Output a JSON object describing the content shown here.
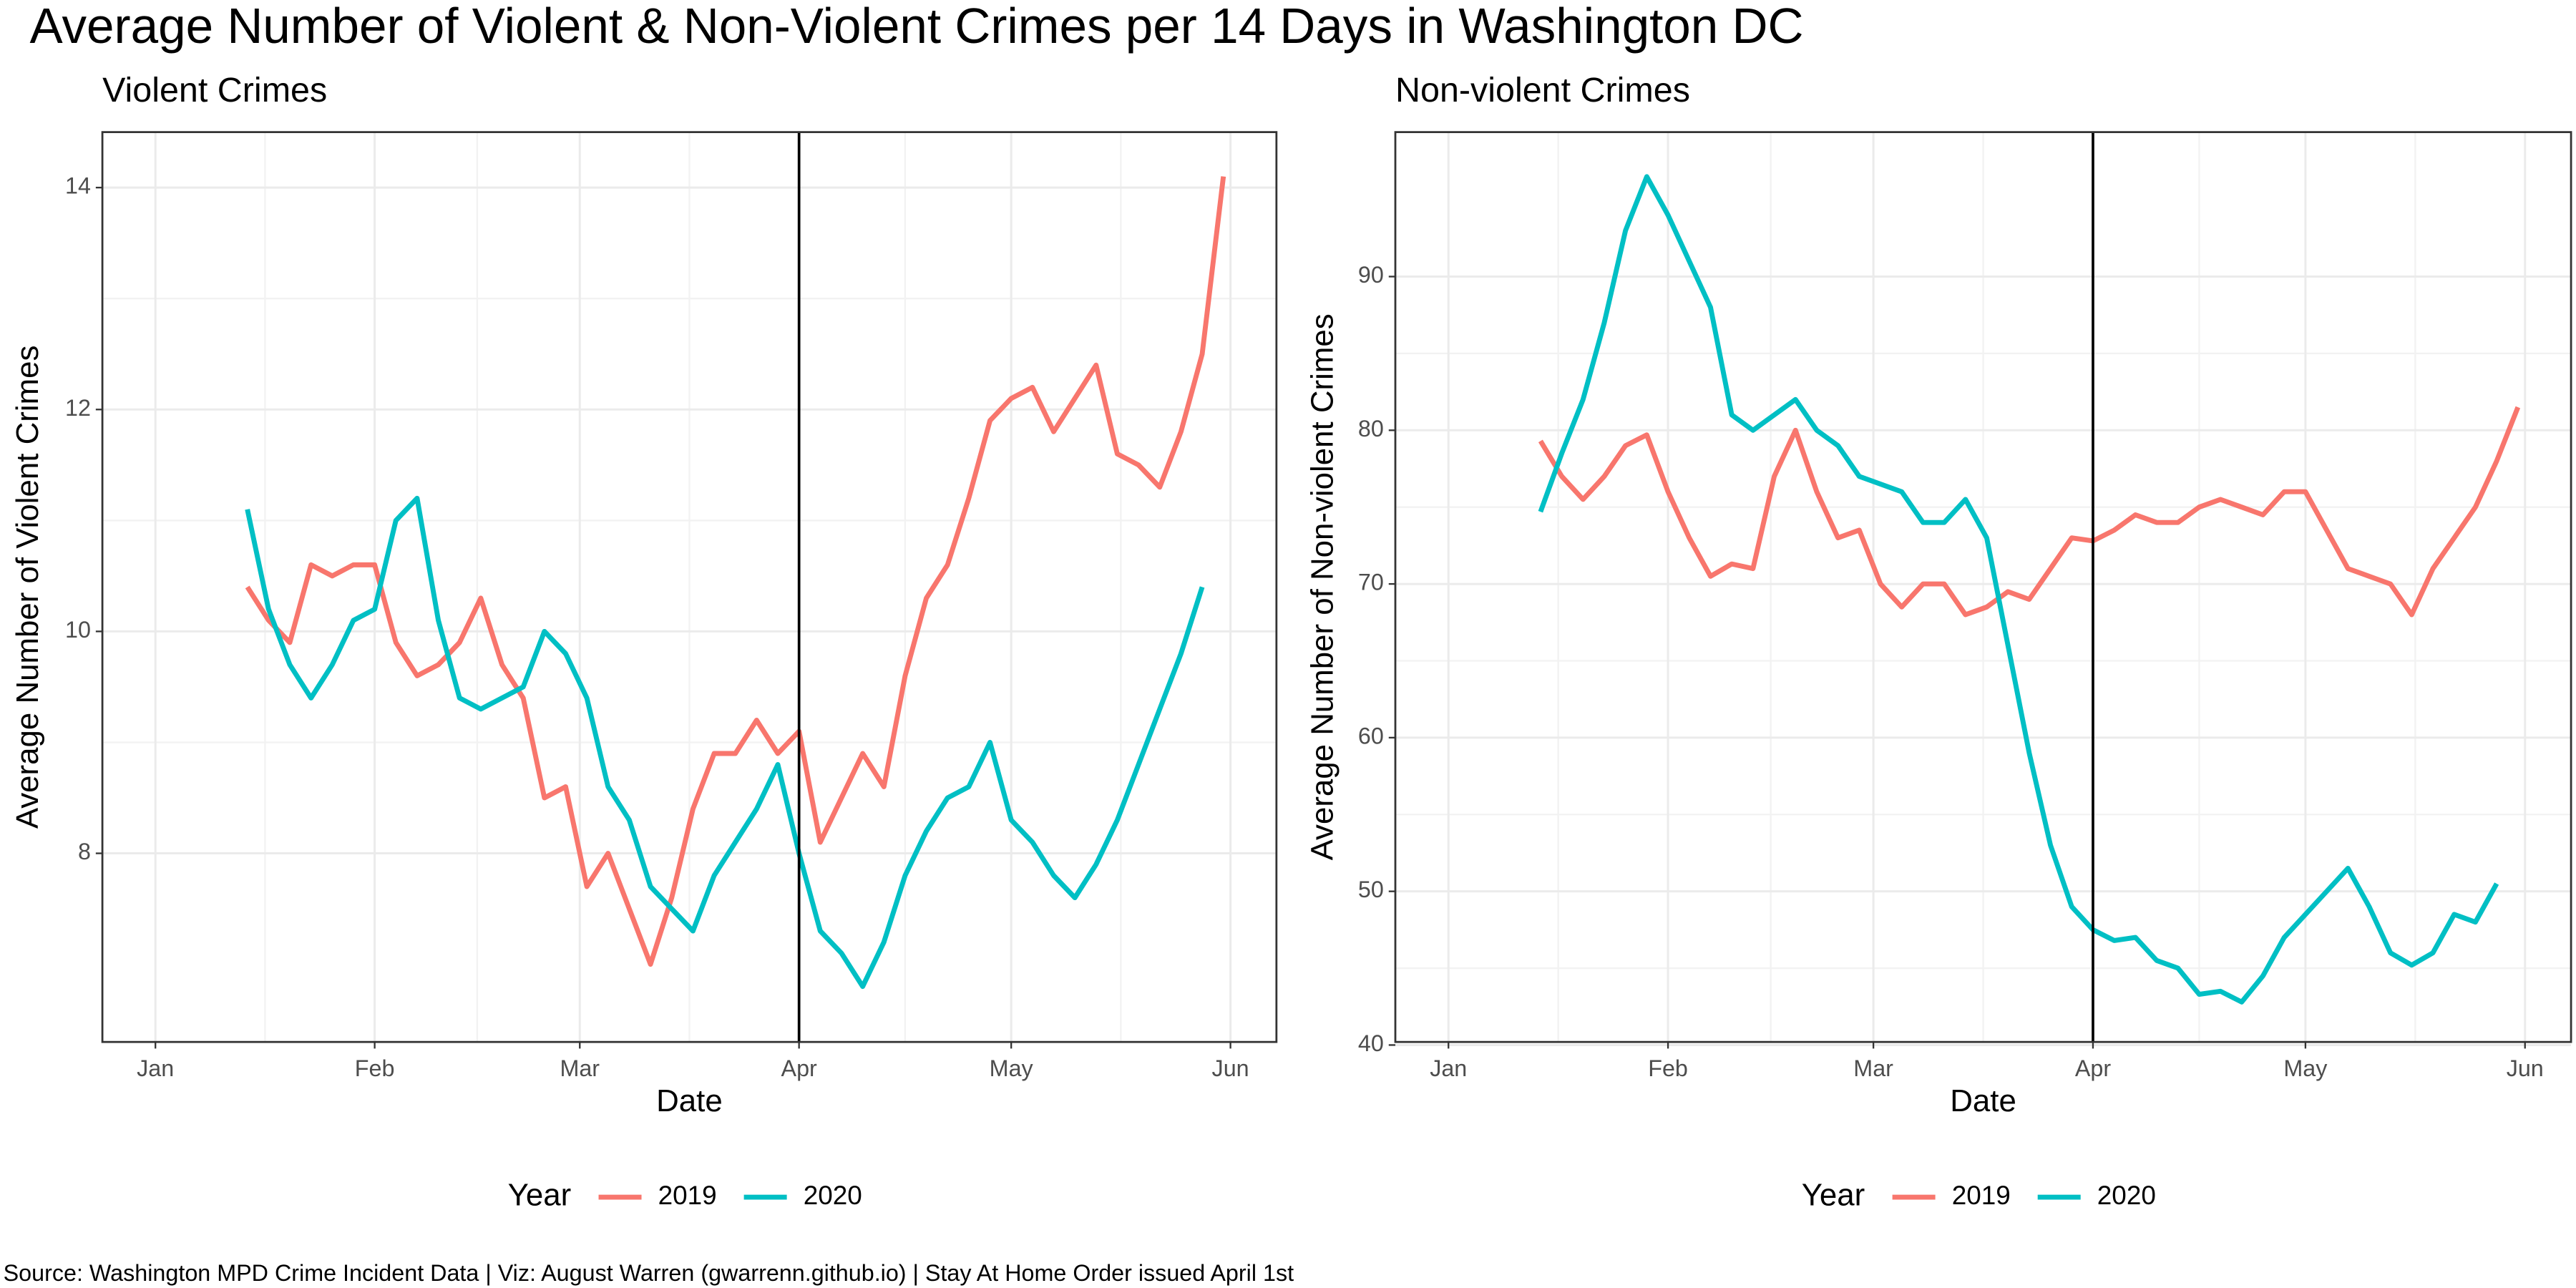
{
  "title": "Average Number of Violent & Non-Violent Crimes per 14 Days in Washington DC",
  "caption": "Source: Washington MPD Crime Incident Data | Viz: August Warren (gwarrenn.github.io) | Stay At Home Order issued April 1st",
  "chart_data": [
    {
      "type": "line",
      "title": "Violent Crimes",
      "xlabel": "Date",
      "ylabel": "Average Number of Violent Crimes",
      "x": [
        14,
        17,
        20,
        23,
        26,
        29,
        32,
        35,
        38,
        41,
        44,
        47,
        50,
        53,
        56,
        59,
        62,
        65,
        68,
        71,
        74,
        77,
        80,
        83,
        86,
        89,
        92,
        95,
        98,
        101,
        104,
        107,
        110,
        113,
        116,
        119,
        122,
        125,
        128,
        131,
        134,
        137,
        140,
        143,
        146,
        149,
        152
      ],
      "series": [
        {
          "name": "2019",
          "color": "#F8766D",
          "values": [
            10.4,
            10.1,
            9.9,
            10.6,
            10.5,
            10.6,
            10.6,
            9.9,
            9.6,
            9.7,
            9.9,
            10.3,
            9.7,
            9.4,
            8.5,
            8.6,
            7.7,
            8.0,
            7.5,
            7.0,
            7.6,
            8.4,
            8.9,
            8.9,
            9.2,
            8.9,
            9.1,
            8.1,
            8.5,
            8.9,
            8.6,
            9.6,
            10.3,
            10.6,
            11.2,
            11.9,
            12.1,
            12.2,
            11.8,
            12.1,
            12.4,
            11.6,
            11.5,
            11.3,
            11.8,
            12.5,
            14.1
          ]
        },
        {
          "name": "2020",
          "color": "#00BFC4",
          "values": [
            11.1,
            10.2,
            9.7,
            9.4,
            9.7,
            10.1,
            10.2,
            11.0,
            11.2,
            10.1,
            9.4,
            9.3,
            9.4,
            9.5,
            10.0,
            9.8,
            9.4,
            8.6,
            8.3,
            7.7,
            7.5,
            7.3,
            7.8,
            8.1,
            8.4,
            8.8,
            8.0,
            7.3,
            7.1,
            6.8,
            7.2,
            7.8,
            8.2,
            8.5,
            8.6,
            9.0,
            8.3,
            8.1,
            7.8,
            7.6,
            7.9,
            8.3,
            8.8,
            9.3,
            9.8,
            10.4,
            null
          ]
        }
      ],
      "xlim": [
        -6.5,
        159.5
      ],
      "ylim": [
        6.3,
        14.5
      ],
      "xticks": [
        {
          "value": 1,
          "label": "Jan"
        },
        {
          "value": 32,
          "label": "Feb"
        },
        {
          "value": 61,
          "label": "Mar"
        },
        {
          "value": 92,
          "label": "Apr"
        },
        {
          "value": 122,
          "label": "May"
        },
        {
          "value": 153,
          "label": "Jun"
        }
      ],
      "yticks": [
        8,
        10,
        12,
        14
      ],
      "vline": 92,
      "legend_title": "Year",
      "grid": true
    },
    {
      "type": "line",
      "title": "Non-violent Crimes",
      "xlabel": "Date",
      "ylabel": "Average Number of Non-violent Crimes",
      "x": [
        14,
        17,
        20,
        23,
        26,
        29,
        32,
        35,
        38,
        41,
        44,
        47,
        50,
        53,
        56,
        59,
        62,
        65,
        68,
        71,
        74,
        77,
        80,
        83,
        86,
        89,
        92,
        95,
        98,
        101,
        104,
        107,
        110,
        113,
        116,
        119,
        122,
        125,
        128,
        131,
        134,
        137,
        140,
        143,
        146,
        149,
        152
      ],
      "series": [
        {
          "name": "2019",
          "color": "#F8766D",
          "values": [
            79.3,
            77,
            75.5,
            77,
            79,
            79.7,
            76,
            73,
            70.5,
            71.3,
            71,
            77,
            80,
            76,
            73,
            73.5,
            70,
            68.5,
            70,
            70,
            68,
            68.5,
            69.5,
            69,
            71,
            73,
            72.8,
            73.5,
            74.5,
            74,
            74,
            75,
            75.5,
            75,
            74.5,
            76,
            76,
            73.5,
            71,
            70.5,
            70,
            68,
            71,
            73,
            75,
            78,
            81.5
          ]
        },
        {
          "name": "2020",
          "color": "#00BFC4",
          "values": [
            74.7,
            78.5,
            82,
            87,
            93,
            96.5,
            94,
            91,
            88,
            81,
            80,
            81,
            82,
            80,
            79,
            77,
            76.5,
            76,
            74,
            74,
            75.5,
            73,
            66,
            59,
            53,
            49,
            47.5,
            46.8,
            47,
            45.5,
            45,
            43.3,
            43.5,
            42.8,
            44.5,
            47,
            48.5,
            50,
            51.5,
            49,
            46,
            45.2,
            46,
            48.5,
            48,
            50.5,
            null
          ]
        }
      ],
      "xlim": [
        -6.5,
        159.5
      ],
      "ylim": [
        40.2,
        99.4
      ],
      "xticks": [
        {
          "value": 1,
          "label": "Jan"
        },
        {
          "value": 32,
          "label": "Feb"
        },
        {
          "value": 61,
          "label": "Mar"
        },
        {
          "value": 92,
          "label": "Apr"
        },
        {
          "value": 122,
          "label": "May"
        },
        {
          "value": 153,
          "label": "Jun"
        }
      ],
      "yticks": [
        40,
        50,
        60,
        70,
        80,
        90
      ],
      "vline": 92,
      "legend_title": "Year",
      "grid": true
    }
  ]
}
